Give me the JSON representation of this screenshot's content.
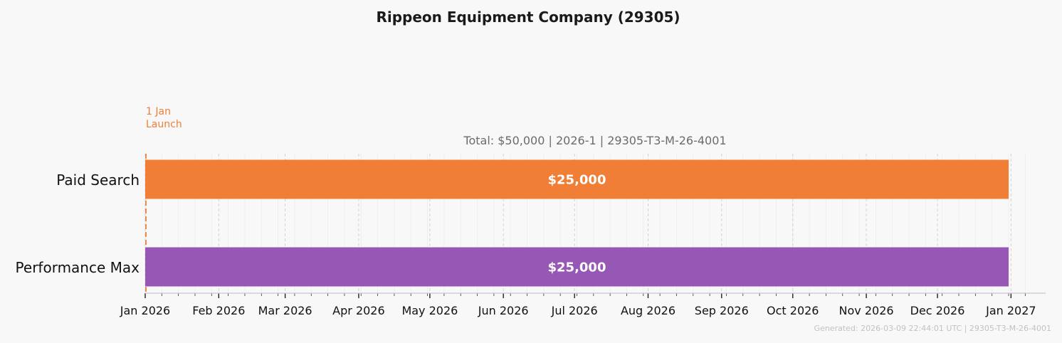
{
  "chart_data": {
    "type": "bar",
    "orientation": "horizontal-timeline",
    "title": "Rippeon Equipment Company (29305)",
    "subtitle": "Total: $50,000  |  2026-1  |  29305-T3-M-26-4001",
    "x_range": [
      "2026-01-01",
      "2027-01-12"
    ],
    "x_ticks": [
      {
        "date": "2026-01-01",
        "label": "Jan 2026"
      },
      {
        "date": "2026-02-01",
        "label": "Feb 2026"
      },
      {
        "date": "2026-03-01",
        "label": "Mar 2026"
      },
      {
        "date": "2026-04-01",
        "label": "Apr 2026"
      },
      {
        "date": "2026-05-01",
        "label": "May 2026"
      },
      {
        "date": "2026-06-01",
        "label": "Jun 2026"
      },
      {
        "date": "2026-07-01",
        "label": "Jul 2026"
      },
      {
        "date": "2026-08-01",
        "label": "Aug 2026"
      },
      {
        "date": "2026-09-01",
        "label": "Sep 2026"
      },
      {
        "date": "2026-10-01",
        "label": "Oct 2026"
      },
      {
        "date": "2026-11-01",
        "label": "Nov 2026"
      },
      {
        "date": "2026-12-01",
        "label": "Dec 2026"
      },
      {
        "date": "2027-01-01",
        "label": "Jan 2027"
      }
    ],
    "series": [
      {
        "name": "Paid Search",
        "start": "2026-01-01",
        "end": "2026-12-31",
        "value": 25000,
        "value_label": "$25,000",
        "color": "#f07e36"
      },
      {
        "name": "Performance Max",
        "start": "2026-01-01",
        "end": "2026-12-31",
        "value": 25000,
        "value_label": "$25,000",
        "color": "#9757b4"
      }
    ],
    "annotations": [
      {
        "date": "2026-01-01",
        "line1": "1 Jan",
        "line2": "Launch",
        "color": "#f07e36"
      }
    ],
    "grid": true,
    "footer": "Generated: 2026-03-09 22:44:01 UTC  |  29305-T3-M-26-4001"
  }
}
